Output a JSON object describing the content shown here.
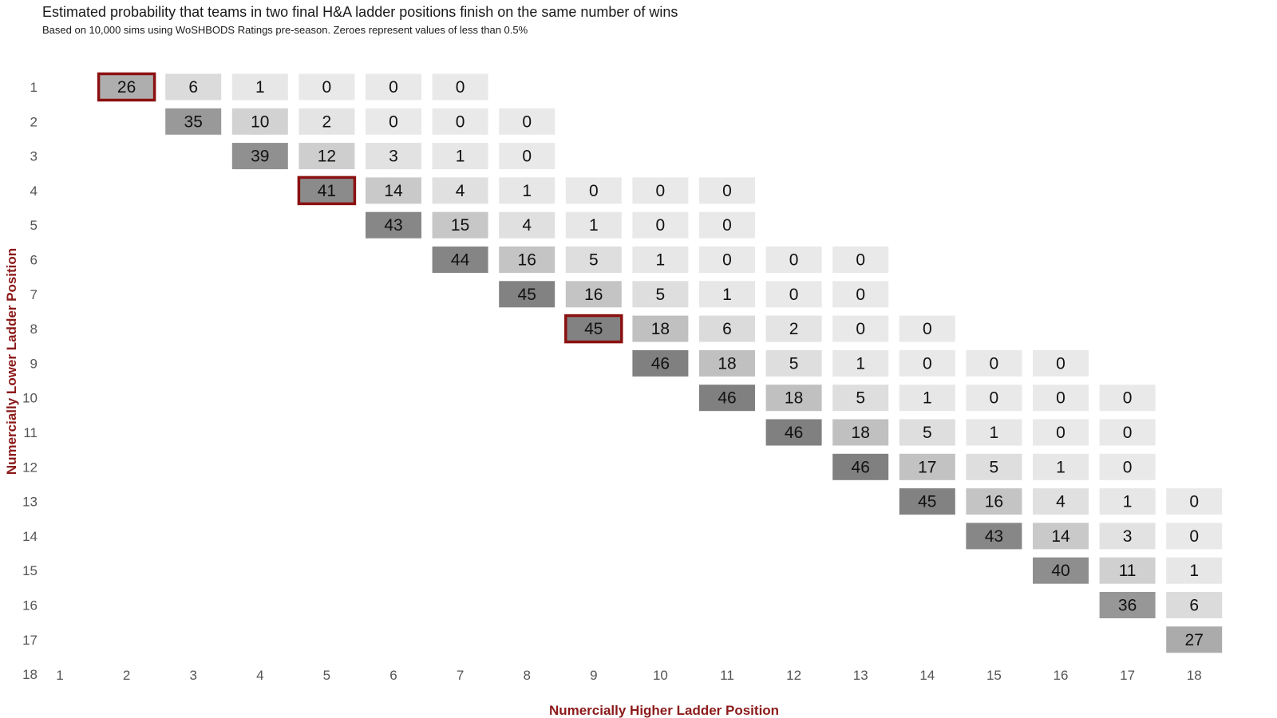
{
  "chart_data": {
    "type": "heatmap",
    "title": "Estimated probability that teams in two final H&A ladder positions finish on the same number of wins",
    "subtitle": "Based on 10,000 sims using WoSHBODS Ratings pre-season. Zeroes represent values of less than 0.5%",
    "xlabel": "Numercially Higher Ladder Position",
    "ylabel": "Numercially Lower Ladder Position",
    "x_ticks": [
      "1",
      "2",
      "3",
      "4",
      "5",
      "6",
      "7",
      "8",
      "9",
      "10",
      "11",
      "12",
      "13",
      "14",
      "15",
      "16",
      "17",
      "18"
    ],
    "y_ticks": [
      "1",
      "2",
      "3",
      "4",
      "5",
      "6",
      "7",
      "8",
      "9",
      "10",
      "11",
      "12",
      "13",
      "14",
      "15",
      "16",
      "17",
      "18"
    ],
    "label_color": "#8b1a1a",
    "highlight_color": "#8b1010",
    "cells": [
      {
        "row": 1,
        "col": 2,
        "value": 26,
        "highlight": true
      },
      {
        "row": 1,
        "col": 3,
        "value": 6
      },
      {
        "row": 1,
        "col": 4,
        "value": 1
      },
      {
        "row": 1,
        "col": 5,
        "value": 0
      },
      {
        "row": 1,
        "col": 6,
        "value": 0
      },
      {
        "row": 1,
        "col": 7,
        "value": 0
      },
      {
        "row": 2,
        "col": 3,
        "value": 35
      },
      {
        "row": 2,
        "col": 4,
        "value": 10
      },
      {
        "row": 2,
        "col": 5,
        "value": 2
      },
      {
        "row": 2,
        "col": 6,
        "value": 0
      },
      {
        "row": 2,
        "col": 7,
        "value": 0
      },
      {
        "row": 2,
        "col": 8,
        "value": 0
      },
      {
        "row": 3,
        "col": 4,
        "value": 39
      },
      {
        "row": 3,
        "col": 5,
        "value": 12
      },
      {
        "row": 3,
        "col": 6,
        "value": 3
      },
      {
        "row": 3,
        "col": 7,
        "value": 1
      },
      {
        "row": 3,
        "col": 8,
        "value": 0
      },
      {
        "row": 4,
        "col": 5,
        "value": 41,
        "highlight": true
      },
      {
        "row": 4,
        "col": 6,
        "value": 14
      },
      {
        "row": 4,
        "col": 7,
        "value": 4
      },
      {
        "row": 4,
        "col": 8,
        "value": 1
      },
      {
        "row": 4,
        "col": 9,
        "value": 0
      },
      {
        "row": 4,
        "col": 10,
        "value": 0
      },
      {
        "row": 4,
        "col": 11,
        "value": 0
      },
      {
        "row": 5,
        "col": 6,
        "value": 43
      },
      {
        "row": 5,
        "col": 7,
        "value": 15
      },
      {
        "row": 5,
        "col": 8,
        "value": 4
      },
      {
        "row": 5,
        "col": 9,
        "value": 1
      },
      {
        "row": 5,
        "col": 10,
        "value": 0
      },
      {
        "row": 5,
        "col": 11,
        "value": 0
      },
      {
        "row": 6,
        "col": 7,
        "value": 44
      },
      {
        "row": 6,
        "col": 8,
        "value": 16
      },
      {
        "row": 6,
        "col": 9,
        "value": 5
      },
      {
        "row": 6,
        "col": 10,
        "value": 1
      },
      {
        "row": 6,
        "col": 11,
        "value": 0
      },
      {
        "row": 6,
        "col": 12,
        "value": 0
      },
      {
        "row": 6,
        "col": 13,
        "value": 0
      },
      {
        "row": 7,
        "col": 8,
        "value": 45
      },
      {
        "row": 7,
        "col": 9,
        "value": 16
      },
      {
        "row": 7,
        "col": 10,
        "value": 5
      },
      {
        "row": 7,
        "col": 11,
        "value": 1
      },
      {
        "row": 7,
        "col": 12,
        "value": 0
      },
      {
        "row": 7,
        "col": 13,
        "value": 0
      },
      {
        "row": 8,
        "col": 9,
        "value": 45,
        "highlight": true
      },
      {
        "row": 8,
        "col": 10,
        "value": 18
      },
      {
        "row": 8,
        "col": 11,
        "value": 6
      },
      {
        "row": 8,
        "col": 12,
        "value": 2
      },
      {
        "row": 8,
        "col": 13,
        "value": 0
      },
      {
        "row": 8,
        "col": 14,
        "value": 0
      },
      {
        "row": 9,
        "col": 10,
        "value": 46
      },
      {
        "row": 9,
        "col": 11,
        "value": 18
      },
      {
        "row": 9,
        "col": 12,
        "value": 5
      },
      {
        "row": 9,
        "col": 13,
        "value": 1
      },
      {
        "row": 9,
        "col": 14,
        "value": 0
      },
      {
        "row": 9,
        "col": 15,
        "value": 0
      },
      {
        "row": 9,
        "col": 16,
        "value": 0
      },
      {
        "row": 10,
        "col": 11,
        "value": 46
      },
      {
        "row": 10,
        "col": 12,
        "value": 18
      },
      {
        "row": 10,
        "col": 13,
        "value": 5
      },
      {
        "row": 10,
        "col": 14,
        "value": 1
      },
      {
        "row": 10,
        "col": 15,
        "value": 0
      },
      {
        "row": 10,
        "col": 16,
        "value": 0
      },
      {
        "row": 10,
        "col": 17,
        "value": 0
      },
      {
        "row": 11,
        "col": 12,
        "value": 46
      },
      {
        "row": 11,
        "col": 13,
        "value": 18
      },
      {
        "row": 11,
        "col": 14,
        "value": 5
      },
      {
        "row": 11,
        "col": 15,
        "value": 1
      },
      {
        "row": 11,
        "col": 16,
        "value": 0
      },
      {
        "row": 11,
        "col": 17,
        "value": 0
      },
      {
        "row": 12,
        "col": 13,
        "value": 46
      },
      {
        "row": 12,
        "col": 14,
        "value": 17
      },
      {
        "row": 12,
        "col": 15,
        "value": 5
      },
      {
        "row": 12,
        "col": 16,
        "value": 1
      },
      {
        "row": 12,
        "col": 17,
        "value": 0
      },
      {
        "row": 13,
        "col": 14,
        "value": 45
      },
      {
        "row": 13,
        "col": 15,
        "value": 16
      },
      {
        "row": 13,
        "col": 16,
        "value": 4
      },
      {
        "row": 13,
        "col": 17,
        "value": 1
      },
      {
        "row": 13,
        "col": 18,
        "value": 0
      },
      {
        "row": 14,
        "col": 15,
        "value": 43
      },
      {
        "row": 14,
        "col": 16,
        "value": 14
      },
      {
        "row": 14,
        "col": 17,
        "value": 3
      },
      {
        "row": 14,
        "col": 18,
        "value": 0
      },
      {
        "row": 15,
        "col": 16,
        "value": 40
      },
      {
        "row": 15,
        "col": 17,
        "value": 11
      },
      {
        "row": 15,
        "col": 18,
        "value": 1
      },
      {
        "row": 16,
        "col": 17,
        "value": 36
      },
      {
        "row": 16,
        "col": 18,
        "value": 6
      },
      {
        "row": 17,
        "col": 18,
        "value": 27
      }
    ]
  }
}
